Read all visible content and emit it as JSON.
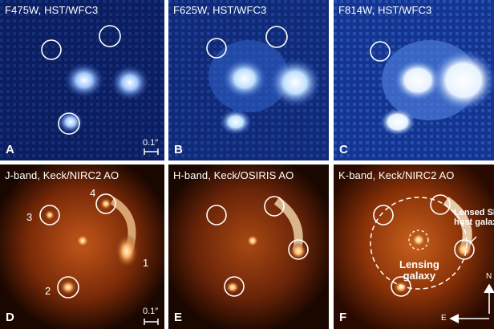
{
  "panels": [
    {
      "id": "A",
      "letter": "A",
      "label": "F475W, HST/WFC3",
      "scale": "0.1″"
    },
    {
      "id": "B",
      "letter": "B",
      "label": "F625W, HST/WFC3"
    },
    {
      "id": "C",
      "letter": "C",
      "label": "F814W, HST/WFC3"
    },
    {
      "id": "D",
      "letter": "D",
      "label": "J-band, Keck/NIRC2 AO",
      "scale": "0.1″",
      "images": [
        "1",
        "2",
        "3",
        "4"
      ]
    },
    {
      "id": "E",
      "letter": "E",
      "label": "H-band, Keck/OSIRIS AO"
    },
    {
      "id": "F",
      "letter": "F",
      "label": "K-band, Keck/NIRC2 AO",
      "annotations": {
        "host": "Lensed SN\nhost galaxy",
        "lensing": "Lensing\ngalaxy",
        "north": "N",
        "east": "E"
      }
    }
  ],
  "colors": {
    "hst_bg": "#0a1a55",
    "hst_mid": "#3a6fd8",
    "hst_hi": "#ffffff",
    "ir_bg": "#150500",
    "ir_mid": "#b84a10",
    "ir_hi": "#fff3d0"
  }
}
